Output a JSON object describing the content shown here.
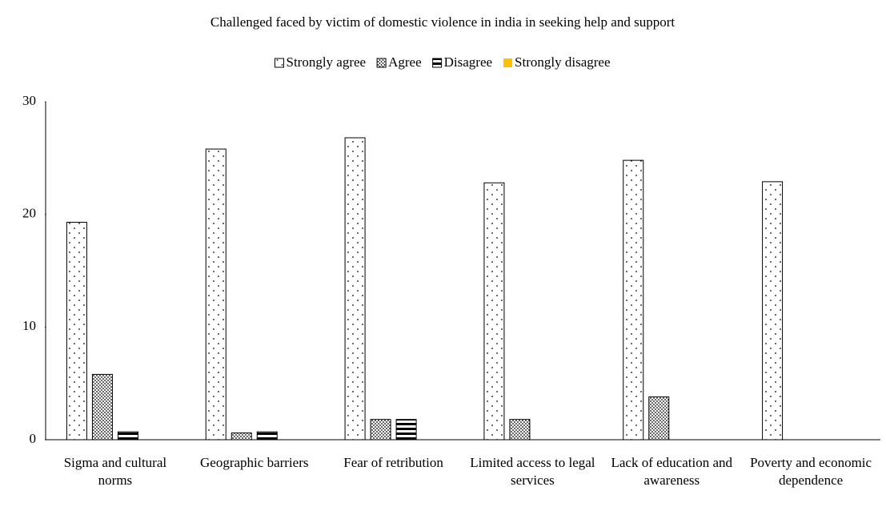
{
  "chart_data": {
    "type": "bar",
    "title": "Challenged faced by victim  of domestic violence in india in seeking help and support",
    "categories": [
      "Sigma and cultural norms",
      "Geographic barriers",
      "Fear of retribution",
      "Limited access to legal services",
      "Lack of education and awareness",
      "Poverty and economic dependence"
    ],
    "series": [
      {
        "name": "Strongly agree",
        "color": "#000000",
        "pattern": "sparse-dots",
        "values": [
          19.3,
          25.8,
          26.8,
          22.8,
          24.8,
          22.9
        ]
      },
      {
        "name": "Agree",
        "color": "#000000",
        "pattern": "dense-dots",
        "values": [
          5.8,
          0.6,
          1.8,
          1.8,
          3.8,
          0
        ]
      },
      {
        "name": "Disagree",
        "color": "#000000",
        "pattern": "stripes",
        "values": [
          0.7,
          0.7,
          1.8,
          0,
          0,
          0
        ]
      },
      {
        "name": "Strongly disagree",
        "color": "#ffc000",
        "pattern": "solid",
        "values": [
          0,
          0,
          0,
          0,
          0,
          0
        ]
      }
    ],
    "ylim": [
      0,
      30
    ],
    "yticks": [
      0,
      10,
      20,
      30
    ],
    "grid": false,
    "legend": "top"
  }
}
